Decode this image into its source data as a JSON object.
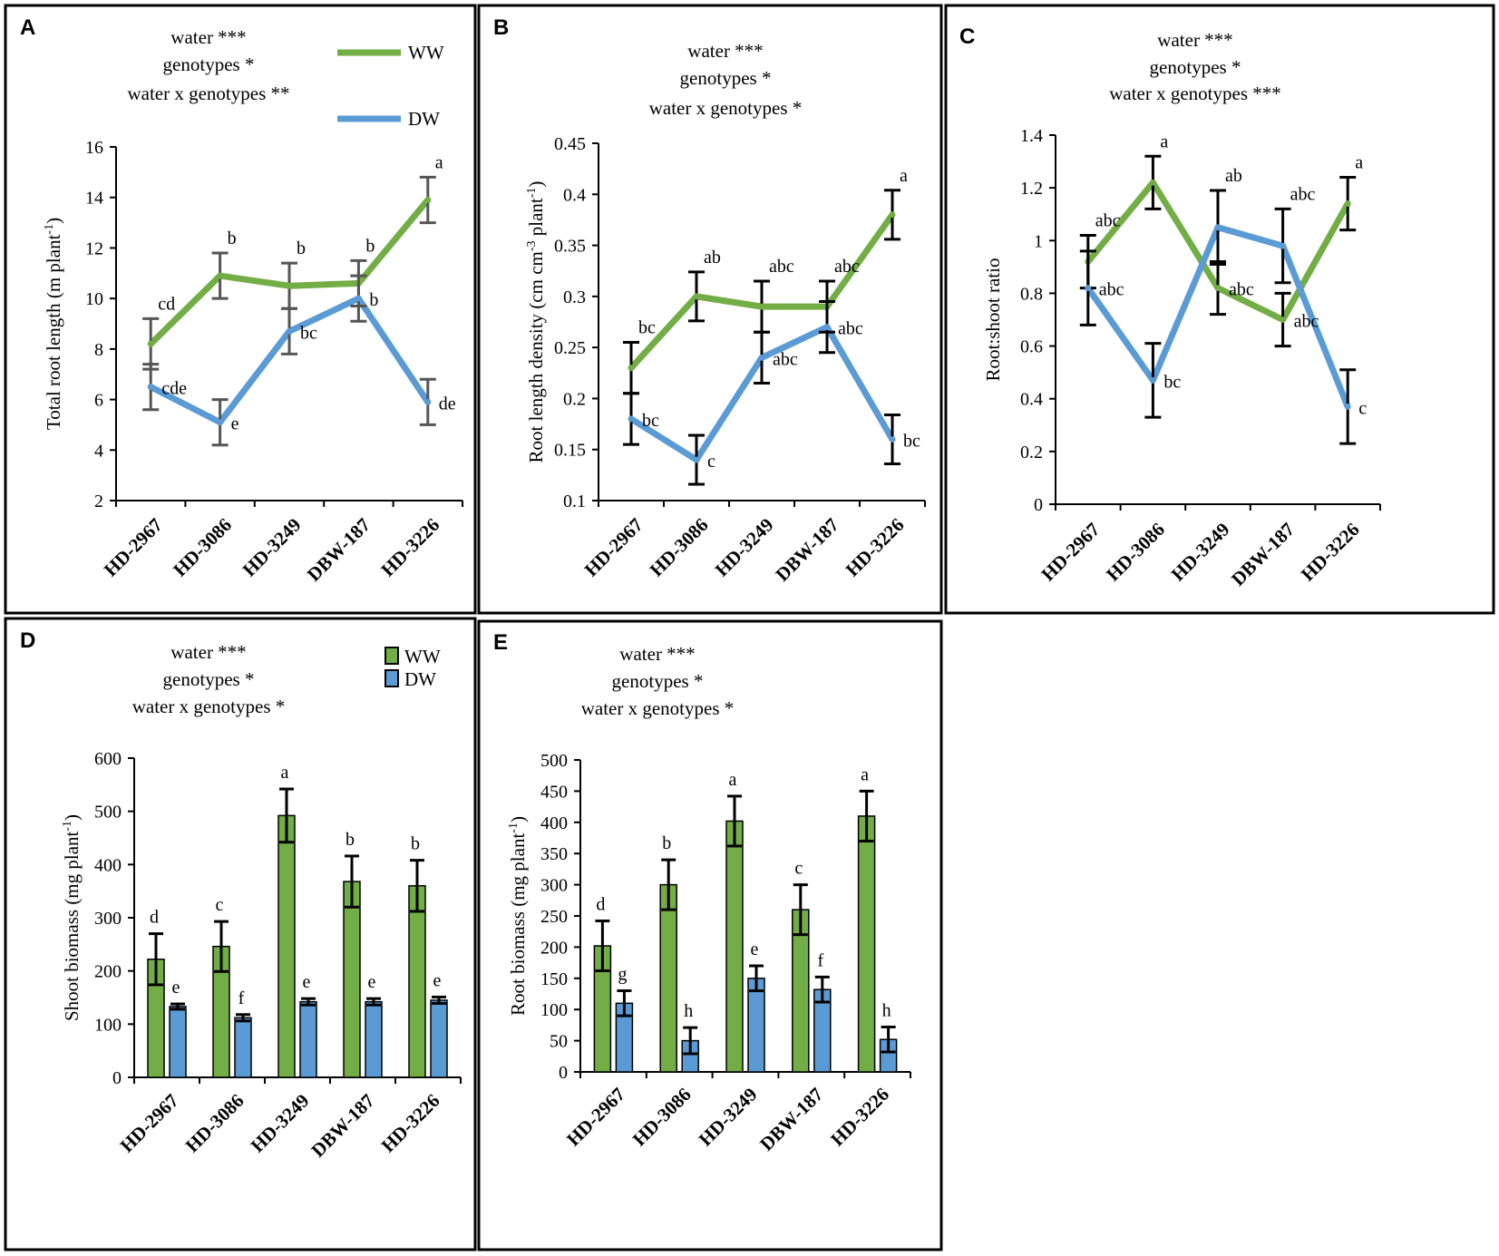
{
  "figure": {
    "colors": {
      "ww": "#72ad45",
      "dw": "#5b9bd5",
      "axis": "#000000",
      "error": "#000000",
      "frame": "#000000"
    }
  },
  "chart_data": [
    {
      "panel": "A",
      "type": "line",
      "stats": [
        "water ***",
        "genotypes *",
        "water x genotypes **"
      ],
      "legend": [
        "WW",
        "DW"
      ],
      "ylabel_main": "Total root length (m plant",
      "ylabel_sup": "-1",
      "ylabel_end": ")",
      "ylim": [
        2,
        16
      ],
      "yticks": [
        2,
        4,
        6,
        8,
        10,
        12,
        14,
        16
      ],
      "categories": [
        "HD-2967",
        "HD-3086",
        "HD-3249",
        "DBW-187",
        "HD-3226"
      ],
      "error_color": "#555555",
      "series": [
        {
          "name": "WW",
          "values": [
            8.2,
            10.9,
            10.5,
            10.6,
            13.9
          ],
          "errors": [
            1.0,
            0.9,
            0.9,
            0.9,
            0.9
          ],
          "letters": [
            "cd",
            "b",
            "b",
            "b",
            "a"
          ]
        },
        {
          "name": "DW",
          "values": [
            6.5,
            5.1,
            8.7,
            10.0,
            5.9
          ],
          "errors": [
            0.9,
            0.9,
            0.9,
            0.9,
            0.9
          ],
          "letters": [
            "cde",
            "e",
            "bc",
            "b",
            "de"
          ]
        }
      ]
    },
    {
      "panel": "B",
      "type": "line",
      "stats": [
        "water ***",
        "genotypes *",
        "water x genotypes *"
      ],
      "legend": [],
      "ylabel_main": "Root length density (cm cm",
      "ylabel_sup": "-3",
      "ylabel_mid": " plant",
      "ylabel_sup2": "-1",
      "ylabel_end": ")",
      "ylim": [
        0.1,
        0.45
      ],
      "yticks": [
        0.1,
        0.15,
        0.2,
        0.25,
        0.3,
        0.35,
        0.4,
        0.45
      ],
      "ytick_labels": [
        "0.1",
        "0.15",
        "0.2",
        "0.25",
        "0.3",
        "0.35",
        "0.4",
        "0.45"
      ],
      "categories": [
        "HD-2967",
        "HD-3086",
        "HD-3249",
        "DBW-187",
        "HD-3226"
      ],
      "error_color": "#000000",
      "series": [
        {
          "name": "WW",
          "values": [
            0.23,
            0.3,
            0.29,
            0.29,
            0.38
          ],
          "errors": [
            0.025,
            0.024,
            0.025,
            0.025,
            0.024
          ],
          "letters": [
            "bc",
            "ab",
            "abc",
            "abc",
            "a"
          ]
        },
        {
          "name": "DW",
          "values": [
            0.18,
            0.14,
            0.24,
            0.27,
            0.16
          ],
          "errors": [
            0.025,
            0.024,
            0.025,
            0.025,
            0.024
          ],
          "letters": [
            "bc",
            "c",
            "abc",
            "abc",
            "bc"
          ]
        }
      ]
    },
    {
      "panel": "C",
      "type": "line",
      "stats": [
        "water ***",
        "genotypes *",
        "water x genotypes ***"
      ],
      "legend": [],
      "ylabel_main": "Root:shoot ratio",
      "ylim": [
        0,
        1.4
      ],
      "yticks": [
        0,
        0.2,
        0.4,
        0.6,
        0.8,
        1.0,
        1.2,
        1.4
      ],
      "ytick_labels": [
        "0",
        "0.2",
        "0.4",
        "0.6",
        "0.8",
        "1",
        "1.2",
        "1.4"
      ],
      "categories": [
        "HD-2967",
        "HD-3086",
        "HD-3249",
        "DBW-187",
        "HD-3226"
      ],
      "error_color": "#000000",
      "series": [
        {
          "name": "WW",
          "values": [
            0.92,
            1.22,
            0.82,
            0.7,
            1.14
          ],
          "errors": [
            0.1,
            0.1,
            0.1,
            0.1,
            0.1
          ],
          "letters": [
            "abc",
            "a",
            "abc",
            "abc",
            "a"
          ]
        },
        {
          "name": "DW",
          "values": [
            0.82,
            0.47,
            1.05,
            0.98,
            0.37
          ],
          "errors": [
            0.14,
            0.14,
            0.14,
            0.14,
            0.14
          ],
          "letters": [
            "abc",
            "bc",
            "ab",
            "abc",
            "c"
          ]
        }
      ]
    },
    {
      "panel": "D",
      "type": "bar",
      "stats": [
        "water ***",
        "genotypes *",
        "water x genotypes *"
      ],
      "legend": [
        "WW",
        "DW"
      ],
      "ylabel_main": "Shoot biomass (mg plant",
      "ylabel_sup": "-1",
      "ylabel_end": ")",
      "ylim": [
        0,
        600
      ],
      "yticks": [
        0,
        100,
        200,
        300,
        400,
        500,
        600
      ],
      "categories": [
        "HD-2967",
        "HD-3086",
        "HD-3249",
        "DBW-187",
        "HD-3226"
      ],
      "series": [
        {
          "name": "WW",
          "values": [
            222,
            246,
            492,
            368,
            360
          ],
          "errors": [
            48,
            47,
            50,
            48,
            48
          ],
          "letters": [
            "d",
            "c",
            "a",
            "b",
            "b"
          ]
        },
        {
          "name": "DW",
          "values": [
            133,
            112,
            142,
            142,
            145
          ],
          "errors": [
            5,
            6,
            6,
            6,
            6
          ],
          "letters": [
            "e",
            "f",
            "e",
            "e",
            "e"
          ]
        }
      ]
    },
    {
      "panel": "E",
      "type": "bar",
      "stats": [
        "water ***",
        "genotypes *",
        "water x genotypes *"
      ],
      "legend": [],
      "ylabel_main": "Root biomass (mg plant",
      "ylabel_sup": "-1",
      "ylabel_end": ")",
      "ylim": [
        0,
        500
      ],
      "yticks": [
        0,
        50,
        100,
        150,
        200,
        250,
        300,
        350,
        400,
        450,
        500
      ],
      "categories": [
        "HD-2967",
        "HD-3086",
        "HD-3249",
        "DBW-187",
        "HD-3226"
      ],
      "series": [
        {
          "name": "WW",
          "values": [
            202,
            300,
            402,
            260,
            410
          ],
          "errors": [
            40,
            40,
            40,
            40,
            40
          ],
          "letters": [
            "d",
            "b",
            "a",
            "c",
            "a"
          ]
        },
        {
          "name": "DW",
          "values": [
            110,
            50,
            150,
            132,
            52
          ],
          "errors": [
            20,
            21,
            20,
            20,
            20
          ],
          "letters": [
            "g",
            "h",
            "e",
            "f",
            "h"
          ]
        }
      ]
    }
  ]
}
